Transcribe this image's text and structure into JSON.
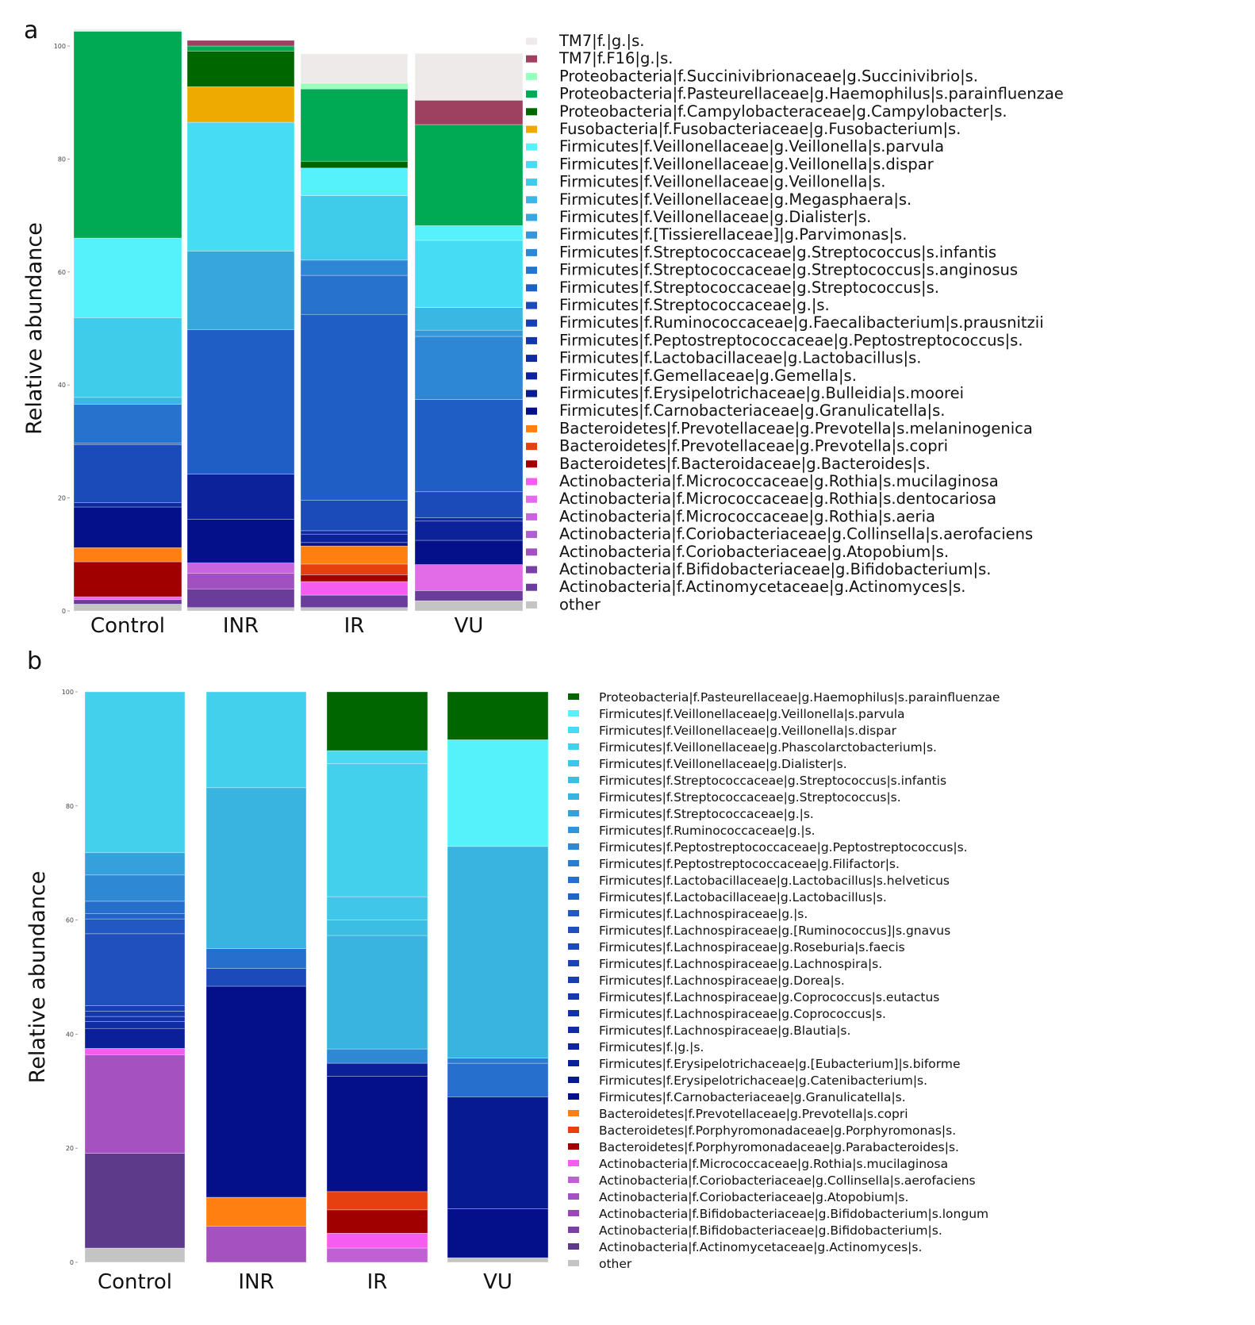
{
  "chart_data": [
    {
      "type": "bar",
      "panel": "a",
      "ylabel": "Relative abundance",
      "ylim": [
        0,
        100
      ],
      "yticks": [
        "0",
        "20",
        "40",
        "60",
        "80",
        "100"
      ],
      "categories": [
        "Control",
        "INR",
        "IR",
        "VU"
      ],
      "series": [
        {
          "name": "other",
          "color": "#c4c4c4",
          "values": [
            1.2,
            0.6,
            0.6,
            1.8
          ]
        },
        {
          "name": "Actinobacteria|f.Actinomycetaceae|g.Actinomyces|s.",
          "color": "#6a3d9a",
          "values": [
            0.8,
            3.3,
            2.2,
            1.8
          ]
        },
        {
          "name": "Actinobacteria|f.Bifidobacteriaceae|g.Bifidobacterium|s.",
          "color": "#7b3fa8",
          "values": [
            0,
            0,
            0,
            0
          ]
        },
        {
          "name": "Actinobacteria|f.Coriobacteriaceae|g.Atopobium|s.",
          "color": "#a24fc2",
          "values": [
            0,
            2.8,
            0,
            0
          ]
        },
        {
          "name": "Actinobacteria|f.Coriobacteriaceae|g.Collinsella|s.aerofaciens",
          "color": "#b15ed0",
          "values": [
            0,
            0,
            0,
            0
          ]
        },
        {
          "name": "Actinobacteria|f.Micrococcaceae|g.Rothia|s.aeria",
          "color": "#c864df",
          "values": [
            0,
            1.8,
            0,
            0
          ]
        },
        {
          "name": "Actinobacteria|f.Micrococcaceae|g.Rothia|s.dentocariosa",
          "color": "#e26be8",
          "values": [
            0,
            0,
            0,
            4.6
          ]
        },
        {
          "name": "Actinobacteria|f.Micrococcaceae|g.Rothia|s.mucilaginosa",
          "color": "#f55df0",
          "values": [
            0.5,
            0,
            2.4,
            0
          ]
        },
        {
          "name": "Bacteroidetes|f.Bacteroidaceae|g.Bacteroides|s.",
          "color": "#a00000",
          "values": [
            6.2,
            0,
            1.2,
            0
          ]
        },
        {
          "name": "Bacteroidetes|f.Prevotellaceae|g.Prevotella|s.copri",
          "color": "#e64010",
          "values": [
            0,
            0,
            1.9,
            0
          ]
        },
        {
          "name": "Bacteroidetes|f.Prevotellaceae|g.Prevotella|s.melaninogenica",
          "color": "#ff8010",
          "values": [
            2.5,
            0,
            3.2,
            0
          ]
        },
        {
          "name": "Firmicutes|f.Carnobacteriaceae|g.Granulicatella|s.",
          "color": "#04108a",
          "values": [
            7.2,
            7.7,
            0.6,
            4.3
          ]
        },
        {
          "name": "Firmicutes|f.Erysipelotrichaceae|g.Bulleidia|s.moorei",
          "color": "#0a1c92",
          "values": [
            0,
            0,
            0,
            0
          ]
        },
        {
          "name": "Firmicutes|f.Gemellaceae|g.Gemella|s.",
          "color": "#0b229a",
          "values": [
            0,
            8.0,
            1.5,
            3.4
          ]
        },
        {
          "name": "Firmicutes|f.Lactobacillaceae|g.Lactobacillus|s.",
          "color": "#0d2aa2",
          "values": [
            0.8,
            0,
            0.6,
            0.6
          ]
        },
        {
          "name": "Firmicutes|f.Peptostreptococcaceae|g.Peptostreptococcus|s.",
          "color": "#1236aa",
          "values": [
            0,
            0,
            0,
            0
          ]
        },
        {
          "name": "Firmicutes|f.Ruminococcaceae|g.Faecalibacterium|s.prausnitzii",
          "color": "#1640b0",
          "values": [
            0,
            0,
            0,
            0
          ]
        },
        {
          "name": "Firmicutes|f.Streptococcaceae|g.|s.",
          "color": "#1a4bb8",
          "values": [
            10.2,
            0,
            5.4,
            4.6
          ]
        },
        {
          "name": "Firmicutes|f.Streptococcaceae|g.Streptococcus|s.",
          "color": "#1f5ec4",
          "values": [
            0.3,
            25.6,
            32.9,
            16.3
          ]
        },
        {
          "name": "Firmicutes|f.Streptococcaceae|g.Streptococcus|s.anginosus",
          "color": "#2672cc",
          "values": [
            6.9,
            0,
            6.9,
            0
          ]
        },
        {
          "name": "Firmicutes|f.Streptococcaceae|g.Streptococcus|s.infantis",
          "color": "#2e87d4",
          "values": [
            0,
            0,
            2.7,
            11.2
          ]
        },
        {
          "name": "Firmicutes|f.[Tissierellaceae]|g.Parvimonas|s.",
          "color": "#3597d8",
          "values": [
            0,
            0,
            0,
            1.1
          ]
        },
        {
          "name": "Firmicutes|f.Veillonellaceae|g.Dialister|s.",
          "color": "#37a6dc",
          "values": [
            0,
            13.9,
            0,
            0
          ]
        },
        {
          "name": "Firmicutes|f.Veillonellaceae|g.Megasphaera|s.",
          "color": "#3ab7e2",
          "values": [
            1.2,
            0,
            0,
            4.0
          ]
        },
        {
          "name": "Firmicutes|f.Veillonellaceae|g.Veillonella|s.",
          "color": "#3fcbea",
          "values": [
            14.1,
            0,
            11.4,
            0
          ]
        },
        {
          "name": "Firmicutes|f.Veillonellaceae|g.Veillonella|s.dispar",
          "color": "#46dcf4",
          "values": [
            0,
            22.8,
            0,
            11.9
          ]
        },
        {
          "name": "Firmicutes|f.Veillonellaceae|g.Veillonella|s.parvula",
          "color": "#55f2fc",
          "values": [
            14.1,
            0,
            4.9,
            2.6
          ]
        },
        {
          "name": "Fusobacteria|f.Fusobacteriaceae|g.Fusobacterium|s.",
          "color": "#eeaa00",
          "values": [
            0,
            6.3,
            0,
            0
          ]
        },
        {
          "name": "Proteobacteria|f.Campylobacteraceae|g.Campylobacter|s.",
          "color": "#006600",
          "values": [
            0,
            6.3,
            1.2,
            0
          ]
        },
        {
          "name": "Proteobacteria|f.Pasteurellaceae|g.Haemophilus|s.parainfluenzae",
          "color": "#00aa55",
          "values": [
            36.6,
            0.9,
            12.8,
            17.9
          ]
        },
        {
          "name": "Proteobacteria|f.Succinivibrionaceae|g.Succinivibrio|s.",
          "color": "#99ffbb",
          "values": [
            0.1,
            0,
            1.0,
            0
          ]
        },
        {
          "name": "TM7|f.F16|g.|s.",
          "color": "#9e4060",
          "values": [
            0,
            1.0,
            0,
            4.3
          ]
        },
        {
          "name": "TM7|f.|g.|s.",
          "color": "#eeeaea",
          "values": [
            0.3,
            0,
            5.2,
            8.3
          ]
        }
      ]
    },
    {
      "type": "bar",
      "panel": "b",
      "ylabel": "Relative abundance",
      "ylim": [
        0,
        100
      ],
      "yticks": [
        "0",
        "20",
        "40",
        "60",
        "80",
        "100"
      ],
      "categories": [
        "Control",
        "INR",
        "IR",
        "VU"
      ],
      "series": [
        {
          "name": "other",
          "color": "#c4c4c4",
          "values": [
            2.5,
            0,
            0,
            0.8
          ]
        },
        {
          "name": "Actinobacteria|f.Actinomycetaceae|g.Actinomyces|s.",
          "color": "#5e3a8a",
          "values": [
            16.6,
            0,
            0,
            0
          ]
        },
        {
          "name": "Actinobacteria|f.Bifidobacteriaceae|g.Bifidobacterium|s.",
          "color": "#7b3fa8",
          "values": [
            0,
            0,
            0,
            0
          ]
        },
        {
          "name": "Actinobacteria|f.Bifidobacteriaceae|g.Bifidobacterium|s.longum",
          "color": "#9a48b6",
          "values": [
            0,
            0,
            0,
            0
          ]
        },
        {
          "name": "Actinobacteria|f.Coriobacteriaceae|g.Atopobium|s.",
          "color": "#a552c0",
          "values": [
            17.3,
            6.3,
            0,
            0
          ]
        },
        {
          "name": "Actinobacteria|f.Coriobacteriaceae|g.Collinsella|s.aerofaciens",
          "color": "#c15fd4",
          "values": [
            0,
            0,
            2.5,
            0
          ]
        },
        {
          "name": "Actinobacteria|f.Micrococcaceae|g.Rothia|s.mucilaginosa",
          "color": "#f55df0",
          "values": [
            1.1,
            0,
            2.6,
            0
          ]
        },
        {
          "name": "Bacteroidetes|f.Porphyromonadaceae|g.Parabacteroides|s.",
          "color": "#a00000",
          "values": [
            0,
            0,
            4.1,
            0
          ]
        },
        {
          "name": "Bacteroidetes|f.Porphyromonadaceae|g.Porphyromonas|s.",
          "color": "#e64010",
          "values": [
            0,
            0,
            3.2,
            0
          ]
        },
        {
          "name": "Bacteroidetes|f.Prevotellaceae|g.Prevotella|s.copri",
          "color": "#ff8010",
          "values": [
            0,
            5.1,
            0,
            0
          ]
        },
        {
          "name": "Firmicutes|f.Carnobacteriaceae|g.Granulicatella|s.",
          "color": "#04108a",
          "values": [
            0,
            37.0,
            20.2,
            8.6
          ]
        },
        {
          "name": "Firmicutes|f.Erysipelotrichaceae|g.Catenibacterium|s.",
          "color": "#081a92",
          "values": [
            0,
            0,
            0,
            19.6
          ]
        },
        {
          "name": "Firmicutes|f.Erysipelotrichaceae|g.[Eubacterium]|s.biforme",
          "color": "#0b2098",
          "values": [
            3.5,
            0,
            2.3,
            0
          ]
        },
        {
          "name": "Firmicutes|f.|g.|s.",
          "color": "#0d269e",
          "values": [
            0,
            0,
            0,
            0
          ]
        },
        {
          "name": "Firmicutes|f.Lachnospiraceae|g.Blautia|s.",
          "color": "#102ca4",
          "values": [
            1.2,
            0,
            0,
            0
          ]
        },
        {
          "name": "Firmicutes|f.Lachnospiraceae|g.Coprococcus|s.",
          "color": "#1232aa",
          "values": [
            0.9,
            0,
            0,
            0
          ]
        },
        {
          "name": "Firmicutes|f.Lachnospiraceae|g.Coprococcus|s.eutactus",
          "color": "#1538ae",
          "values": [
            0.9,
            0,
            0,
            0
          ]
        },
        {
          "name": "Firmicutes|f.Lachnospiraceae|g.Dorea|s.",
          "color": "#173eb2",
          "values": [
            1.0,
            0,
            0,
            0
          ]
        },
        {
          "name": "Firmicutes|f.Lachnospiraceae|g.Lachnospira|s.",
          "color": "#1a44b6",
          "values": [
            0,
            0,
            0,
            0
          ]
        },
        {
          "name": "Firmicutes|f.Lachnospiraceae|g.Roseburia|s.faecis",
          "color": "#1c4aba",
          "values": [
            0,
            3.1,
            0,
            0
          ]
        },
        {
          "name": "Firmicutes|f.Lachnospiraceae|g.[Ruminococcus]|s.gnavus",
          "color": "#1f50be",
          "values": [
            12.6,
            0,
            0,
            0
          ]
        },
        {
          "name": "Firmicutes|f.Lachnospiraceae|g.|s.",
          "color": "#2258c2",
          "values": [
            2.6,
            0,
            0,
            0
          ]
        },
        {
          "name": "Firmicutes|f.Lactobacillaceae|g.Lactobacillus|s.",
          "color": "#2463c6",
          "values": [
            0.9,
            0,
            0,
            0
          ]
        },
        {
          "name": "Firmicutes|f.Lactobacillaceae|g.Lactobacillus|s.helveticus",
          "color": "#276fcc",
          "values": [
            2.2,
            3.5,
            0,
            5.9
          ]
        },
        {
          "name": "Firmicutes|f.Peptostreptococcaceae|g.Filifactor|s.",
          "color": "#2b7bd0",
          "values": [
            0,
            0,
            0,
            0.9
          ]
        },
        {
          "name": "Firmicutes|f.Peptostreptococcaceae|g.Peptostreptococcus|s.",
          "color": "#2f88d4",
          "values": [
            4.6,
            0,
            2.5,
            0
          ]
        },
        {
          "name": "Firmicutes|f.Ruminococcaceae|g.|s.",
          "color": "#3394d8",
          "values": [
            0,
            0,
            0,
            0
          ]
        },
        {
          "name": "Firmicutes|f.Streptococcaceae|g.|s.",
          "color": "#36a0dc",
          "values": [
            3.9,
            0,
            0,
            0
          ]
        },
        {
          "name": "Firmicutes|f.Streptococcaceae|g.Streptococcus|s.",
          "color": "#39b3e0",
          "values": [
            0,
            28.2,
            19.9,
            37.1
          ]
        },
        {
          "name": "Firmicutes|f.Streptococcaceae|g.Streptococcus|s.infantis",
          "color": "#3cbde4",
          "values": [
            0,
            0,
            2.7,
            0
          ]
        },
        {
          "name": "Firmicutes|f.Veillonellaceae|g.Dialister|s.",
          "color": "#3fc6e8",
          "values": [
            0,
            0,
            4.1,
            0
          ]
        },
        {
          "name": "Firmicutes|f.Veillonellaceae|g.Phascolarctobacterium|s.",
          "color": "#43d0ec",
          "values": [
            28.2,
            16.8,
            23.3,
            0
          ]
        },
        {
          "name": "Firmicutes|f.Veillonellaceae|g.Veillonella|s.dispar",
          "color": "#4ad9f2",
          "values": [
            0,
            0,
            2.3,
            0
          ]
        },
        {
          "name": "Firmicutes|f.Veillonellaceae|g.Veillonella|s.parvula",
          "color": "#55f2fc",
          "values": [
            0,
            0,
            0,
            18.7
          ]
        },
        {
          "name": "Proteobacteria|f.Pasteurellaceae|g.Haemophilus|s.parainfluenzae",
          "color": "#006600",
          "values": [
            0,
            0,
            10.3,
            8.4
          ]
        }
      ]
    }
  ],
  "figure": {
    "panel_a": {
      "letter": "a",
      "legend": [
        "TM7|f.|g.|s.",
        "TM7|f.F16|g.|s.",
        "Proteobacteria|f.Succinivibrionaceae|g.Succinivibrio|s.",
        "Proteobacteria|f.Pasteurellaceae|g.Haemophilus|s.parainfluenzae",
        "Proteobacteria|f.Campylobacteraceae|g.Campylobacter|s.",
        "Fusobacteria|f.Fusobacteriaceae|g.Fusobacterium|s.",
        "Firmicutes|f.Veillonellaceae|g.Veillonella|s.parvula",
        "Firmicutes|f.Veillonellaceae|g.Veillonella|s.dispar",
        "Firmicutes|f.Veillonellaceae|g.Veillonella|s.",
        "Firmicutes|f.Veillonellaceae|g.Megasphaera|s.",
        "Firmicutes|f.Veillonellaceae|g.Dialister|s.",
        "Firmicutes|f.[Tissierellaceae]|g.Parvimonas|s.",
        "Firmicutes|f.Streptococcaceae|g.Streptococcus|s.infantis",
        "Firmicutes|f.Streptococcaceae|g.Streptococcus|s.anginosus",
        "Firmicutes|f.Streptococcaceae|g.Streptococcus|s.",
        "Firmicutes|f.Streptococcaceae|g.|s.",
        "Firmicutes|f.Ruminococcaceae|g.Faecalibacterium|s.prausnitzii",
        "Firmicutes|f.Peptostreptococcaceae|g.Peptostreptococcus|s.",
        "Firmicutes|f.Lactobacillaceae|g.Lactobacillus|s.",
        "Firmicutes|f.Gemellaceae|g.Gemella|s.",
        "Firmicutes|f.Erysipelotrichaceae|g.Bulleidia|s.moorei",
        "Firmicutes|f.Carnobacteriaceae|g.Granulicatella|s.",
        "Bacteroidetes|f.Prevotellaceae|g.Prevotella|s.melaninogenica",
        "Bacteroidetes|f.Prevotellaceae|g.Prevotella|s.copri",
        "Bacteroidetes|f.Bacteroidaceae|g.Bacteroides|s.",
        "Actinobacteria|f.Micrococcaceae|g.Rothia|s.mucilaginosa",
        "Actinobacteria|f.Micrococcaceae|g.Rothia|s.dentocariosa",
        "Actinobacteria|f.Micrococcaceae|g.Rothia|s.aeria",
        "Actinobacteria|f.Coriobacteriaceae|g.Collinsella|s.aerofaciens",
        "Actinobacteria|f.Coriobacteriaceae|g.Atopobium|s.",
        "Actinobacteria|f.Bifidobacteriaceae|g.Bifidobacterium|s.",
        "Actinobacteria|f.Actinomycetaceae|g.Actinomyces|s.",
        "other"
      ]
    },
    "panel_b": {
      "letter": "b",
      "legend": [
        "Proteobacteria|f.Pasteurellaceae|g.Haemophilus|s.parainfluenzae",
        "Firmicutes|f.Veillonellaceae|g.Veillonella|s.parvula",
        "Firmicutes|f.Veillonellaceae|g.Veillonella|s.dispar",
        "Firmicutes|f.Veillonellaceae|g.Phascolarctobacterium|s.",
        "Firmicutes|f.Veillonellaceae|g.Dialister|s.",
        "Firmicutes|f.Streptococcaceae|g.Streptococcus|s.infantis",
        "Firmicutes|f.Streptococcaceae|g.Streptococcus|s.",
        "Firmicutes|f.Streptococcaceae|g.|s.",
        "Firmicutes|f.Ruminococcaceae|g.|s.",
        "Firmicutes|f.Peptostreptococcaceae|g.Peptostreptococcus|s.",
        "Firmicutes|f.Peptostreptococcaceae|g.Filifactor|s.",
        "Firmicutes|f.Lactobacillaceae|g.Lactobacillus|s.helveticus",
        "Firmicutes|f.Lactobacillaceae|g.Lactobacillus|s.",
        "Firmicutes|f.Lachnospiraceae|g.|s.",
        "Firmicutes|f.Lachnospiraceae|g.[Ruminococcus]|s.gnavus",
        "Firmicutes|f.Lachnospiraceae|g.Roseburia|s.faecis",
        "Firmicutes|f.Lachnospiraceae|g.Lachnospira|s.",
        "Firmicutes|f.Lachnospiraceae|g.Dorea|s.",
        "Firmicutes|f.Lachnospiraceae|g.Coprococcus|s.eutactus",
        "Firmicutes|f.Lachnospiraceae|g.Coprococcus|s.",
        "Firmicutes|f.Lachnospiraceae|g.Blautia|s.",
        "Firmicutes|f.|g.|s.",
        "Firmicutes|f.Erysipelotrichaceae|g.[Eubacterium]|s.biforme",
        "Firmicutes|f.Erysipelotrichaceae|g.Catenibacterium|s.",
        "Firmicutes|f.Carnobacteriaceae|g.Granulicatella|s.",
        "Bacteroidetes|f.Prevotellaceae|g.Prevotella|s.copri",
        "Bacteroidetes|f.Porphyromonadaceae|g.Porphyromonas|s.",
        "Bacteroidetes|f.Porphyromonadaceae|g.Parabacteroides|s.",
        "Actinobacteria|f.Micrococcaceae|g.Rothia|s.mucilaginosa",
        "Actinobacteria|f.Coriobacteriaceae|g.Collinsella|s.aerofaciens",
        "Actinobacteria|f.Coriobacteriaceae|g.Atopobium|s.",
        "Actinobacteria|f.Bifidobacteriaceae|g.Bifidobacterium|s.longum",
        "Actinobacteria|f.Bifidobacteriaceae|g.Bifidobacterium|s.",
        "Actinobacteria|f.Actinomycetaceae|g.Actinomyces|s.",
        "other"
      ]
    }
  }
}
